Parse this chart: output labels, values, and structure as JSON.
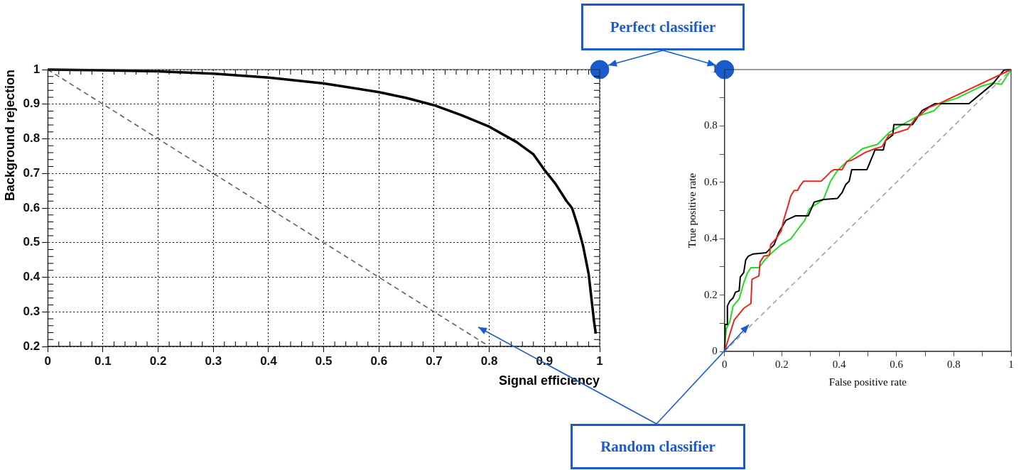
{
  "chart_data": [
    {
      "type": "line",
      "xlabel": "Signal efficiency",
      "ylabel": "Background rejection",
      "xlim": [
        0,
        1
      ],
      "ylim": [
        0.2,
        1
      ],
      "xticks": [
        0,
        0.1,
        0.2,
        0.3,
        0.4,
        0.5,
        0.6,
        0.7,
        0.8,
        0.9,
        1
      ],
      "yticks": [
        0.2,
        0.3,
        0.4,
        0.5,
        0.6,
        0.7,
        0.8,
        0.9,
        1
      ],
      "grid": true,
      "marker": "none",
      "annotations": [
        "Perfect classifier",
        "Random classifier"
      ],
      "series": [
        {
          "color": "#000000",
          "x": [
            0,
            0.1,
            0.2,
            0.3,
            0.4,
            0.5,
            0.6,
            0.65,
            0.7,
            0.75,
            0.8,
            0.85,
            0.88,
            0.9,
            0.92,
            0.94,
            0.95,
            0.96,
            0.97,
            0.98,
            0.985,
            0.99,
            0.993
          ],
          "values": [
            1,
            0.998,
            0.995,
            0.988,
            0.977,
            0.96,
            0.935,
            0.918,
            0.897,
            0.868,
            0.835,
            0.79,
            0.755,
            0.71,
            0.67,
            0.62,
            0.6,
            0.55,
            0.49,
            0.41,
            0.34,
            0.27,
            0.237
          ]
        },
        {
          "color": "#606060",
          "line_style": "dashed",
          "x": [
            0,
            0.8
          ],
          "values": [
            1,
            0.2
          ]
        },
        {
          "type": "scatter",
          "marker": "circle",
          "color": "#1a5bd0",
          "x": [
            1
          ],
          "values": [
            1
          ]
        }
      ]
    },
    {
      "type": "line",
      "xlabel": "False positive rate",
      "ylabel": "True positive rate",
      "xlim": [
        0,
        1
      ],
      "ylim": [
        0,
        1
      ],
      "xticks": [
        0,
        {
          "value": 0.1,
          "label": null
        },
        0.2,
        {
          "value": 0.3,
          "label": null
        },
        0.4,
        {
          "value": 0.5,
          "label": null
        },
        0.6,
        {
          "value": 0.7,
          "label": null
        },
        0.8,
        {
          "value": 0.9,
          "label": null
        },
        1
      ],
      "yticks": [
        0,
        {
          "value": 0.1,
          "label": null
        },
        0.2,
        {
          "value": 0.3,
          "label": null
        },
        0.4,
        {
          "value": 0.5,
          "label": null
        },
        0.6,
        {
          "value": 0.7,
          "label": null
        },
        0.8,
        {
          "value": 0.9,
          "label": null
        },
        1
      ],
      "marker": "none",
      "series": [
        {
          "color": "#b09a9a",
          "line_style": "dashed",
          "x": [
            0,
            1
          ],
          "values": [
            0,
            1
          ]
        },
        {
          "color": "#e8261f",
          "x": [
            0,
            0.034,
            0.067,
            0.092,
            0.096,
            0.12,
            0.124,
            0.137,
            0.157,
            0.161,
            0.18,
            0.198,
            0.206,
            0.223,
            0.231,
            0.243,
            0.255,
            0.264,
            0.276,
            0.337,
            0.354,
            0.37,
            0.382,
            0.41,
            0.427,
            0.443,
            0.493,
            0.525,
            0.55,
            0.574,
            0.64,
            0.665,
            0.714,
            0.754,
            1
          ],
          "values": [
            0,
            0.112,
            0.153,
            0.17,
            0.256,
            0.268,
            0.317,
            0.338,
            0.342,
            0.379,
            0.4,
            0.428,
            0.465,
            0.522,
            0.551,
            0.571,
            0.571,
            0.588,
            0.604,
            0.604,
            0.62,
            0.637,
            0.645,
            0.645,
            0.674,
            0.678,
            0.707,
            0.719,
            0.727,
            0.768,
            0.789,
            0.825,
            0.866,
            0.882,
            1
          ]
        },
        {
          "color": "#000000",
          "x": [
            0,
            0.002,
            0.01,
            0.01,
            0.018,
            0.03,
            0.038,
            0.051,
            0.055,
            0.067,
            0.074,
            0.083,
            0.1,
            0.145,
            0.153,
            0.173,
            0.19,
            0.202,
            0.214,
            0.247,
            0.292,
            0.313,
            0.345,
            0.394,
            0.41,
            0.423,
            0.435,
            0.444,
            0.497,
            0.517,
            0.525,
            0.554,
            0.562,
            0.587,
            0.591,
            0.656,
            0.689,
            0.734,
            0.853,
            0.935,
            0.975,
            1
          ],
          "values": [
            0,
            0.096,
            0.096,
            0.161,
            0.178,
            0.19,
            0.21,
            0.215,
            0.264,
            0.28,
            0.325,
            0.338,
            0.346,
            0.35,
            0.358,
            0.379,
            0.424,
            0.444,
            0.465,
            0.481,
            0.481,
            0.53,
            0.539,
            0.543,
            0.563,
            0.592,
            0.604,
            0.645,
            0.645,
            0.694,
            0.715,
            0.715,
            0.748,
            0.768,
            0.805,
            0.805,
            0.854,
            0.879,
            0.879,
            0.948,
            0.998,
            1
          ]
        },
        {
          "color": "#22dd22",
          "x": [
            0,
            0.006,
            0.018,
            0.03,
            0.051,
            0.067,
            0.079,
            0.092,
            0.12,
            0.141,
            0.165,
            0.198,
            0.231,
            0.255,
            0.28,
            0.296,
            0.345,
            0.37,
            0.394,
            0.427,
            0.481,
            0.534,
            0.574,
            0.607,
            0.673,
            0.731,
            0.759,
            0.812,
            0.894,
            0.935,
            0.967,
            1
          ],
          "values": [
            0,
            0.08,
            0.104,
            0.161,
            0.186,
            0.243,
            0.276,
            0.297,
            0.297,
            0.325,
            0.35,
            0.379,
            0.399,
            0.432,
            0.465,
            0.506,
            0.539,
            0.604,
            0.641,
            0.674,
            0.719,
            0.735,
            0.776,
            0.797,
            0.834,
            0.854,
            0.882,
            0.899,
            0.94,
            0.952,
            0.948,
            1
          ]
        },
        {
          "type": "scatter",
          "marker": "circle",
          "color": "#1a5bd0",
          "x": [
            0
          ],
          "values": [
            1
          ]
        }
      ]
    }
  ]
}
